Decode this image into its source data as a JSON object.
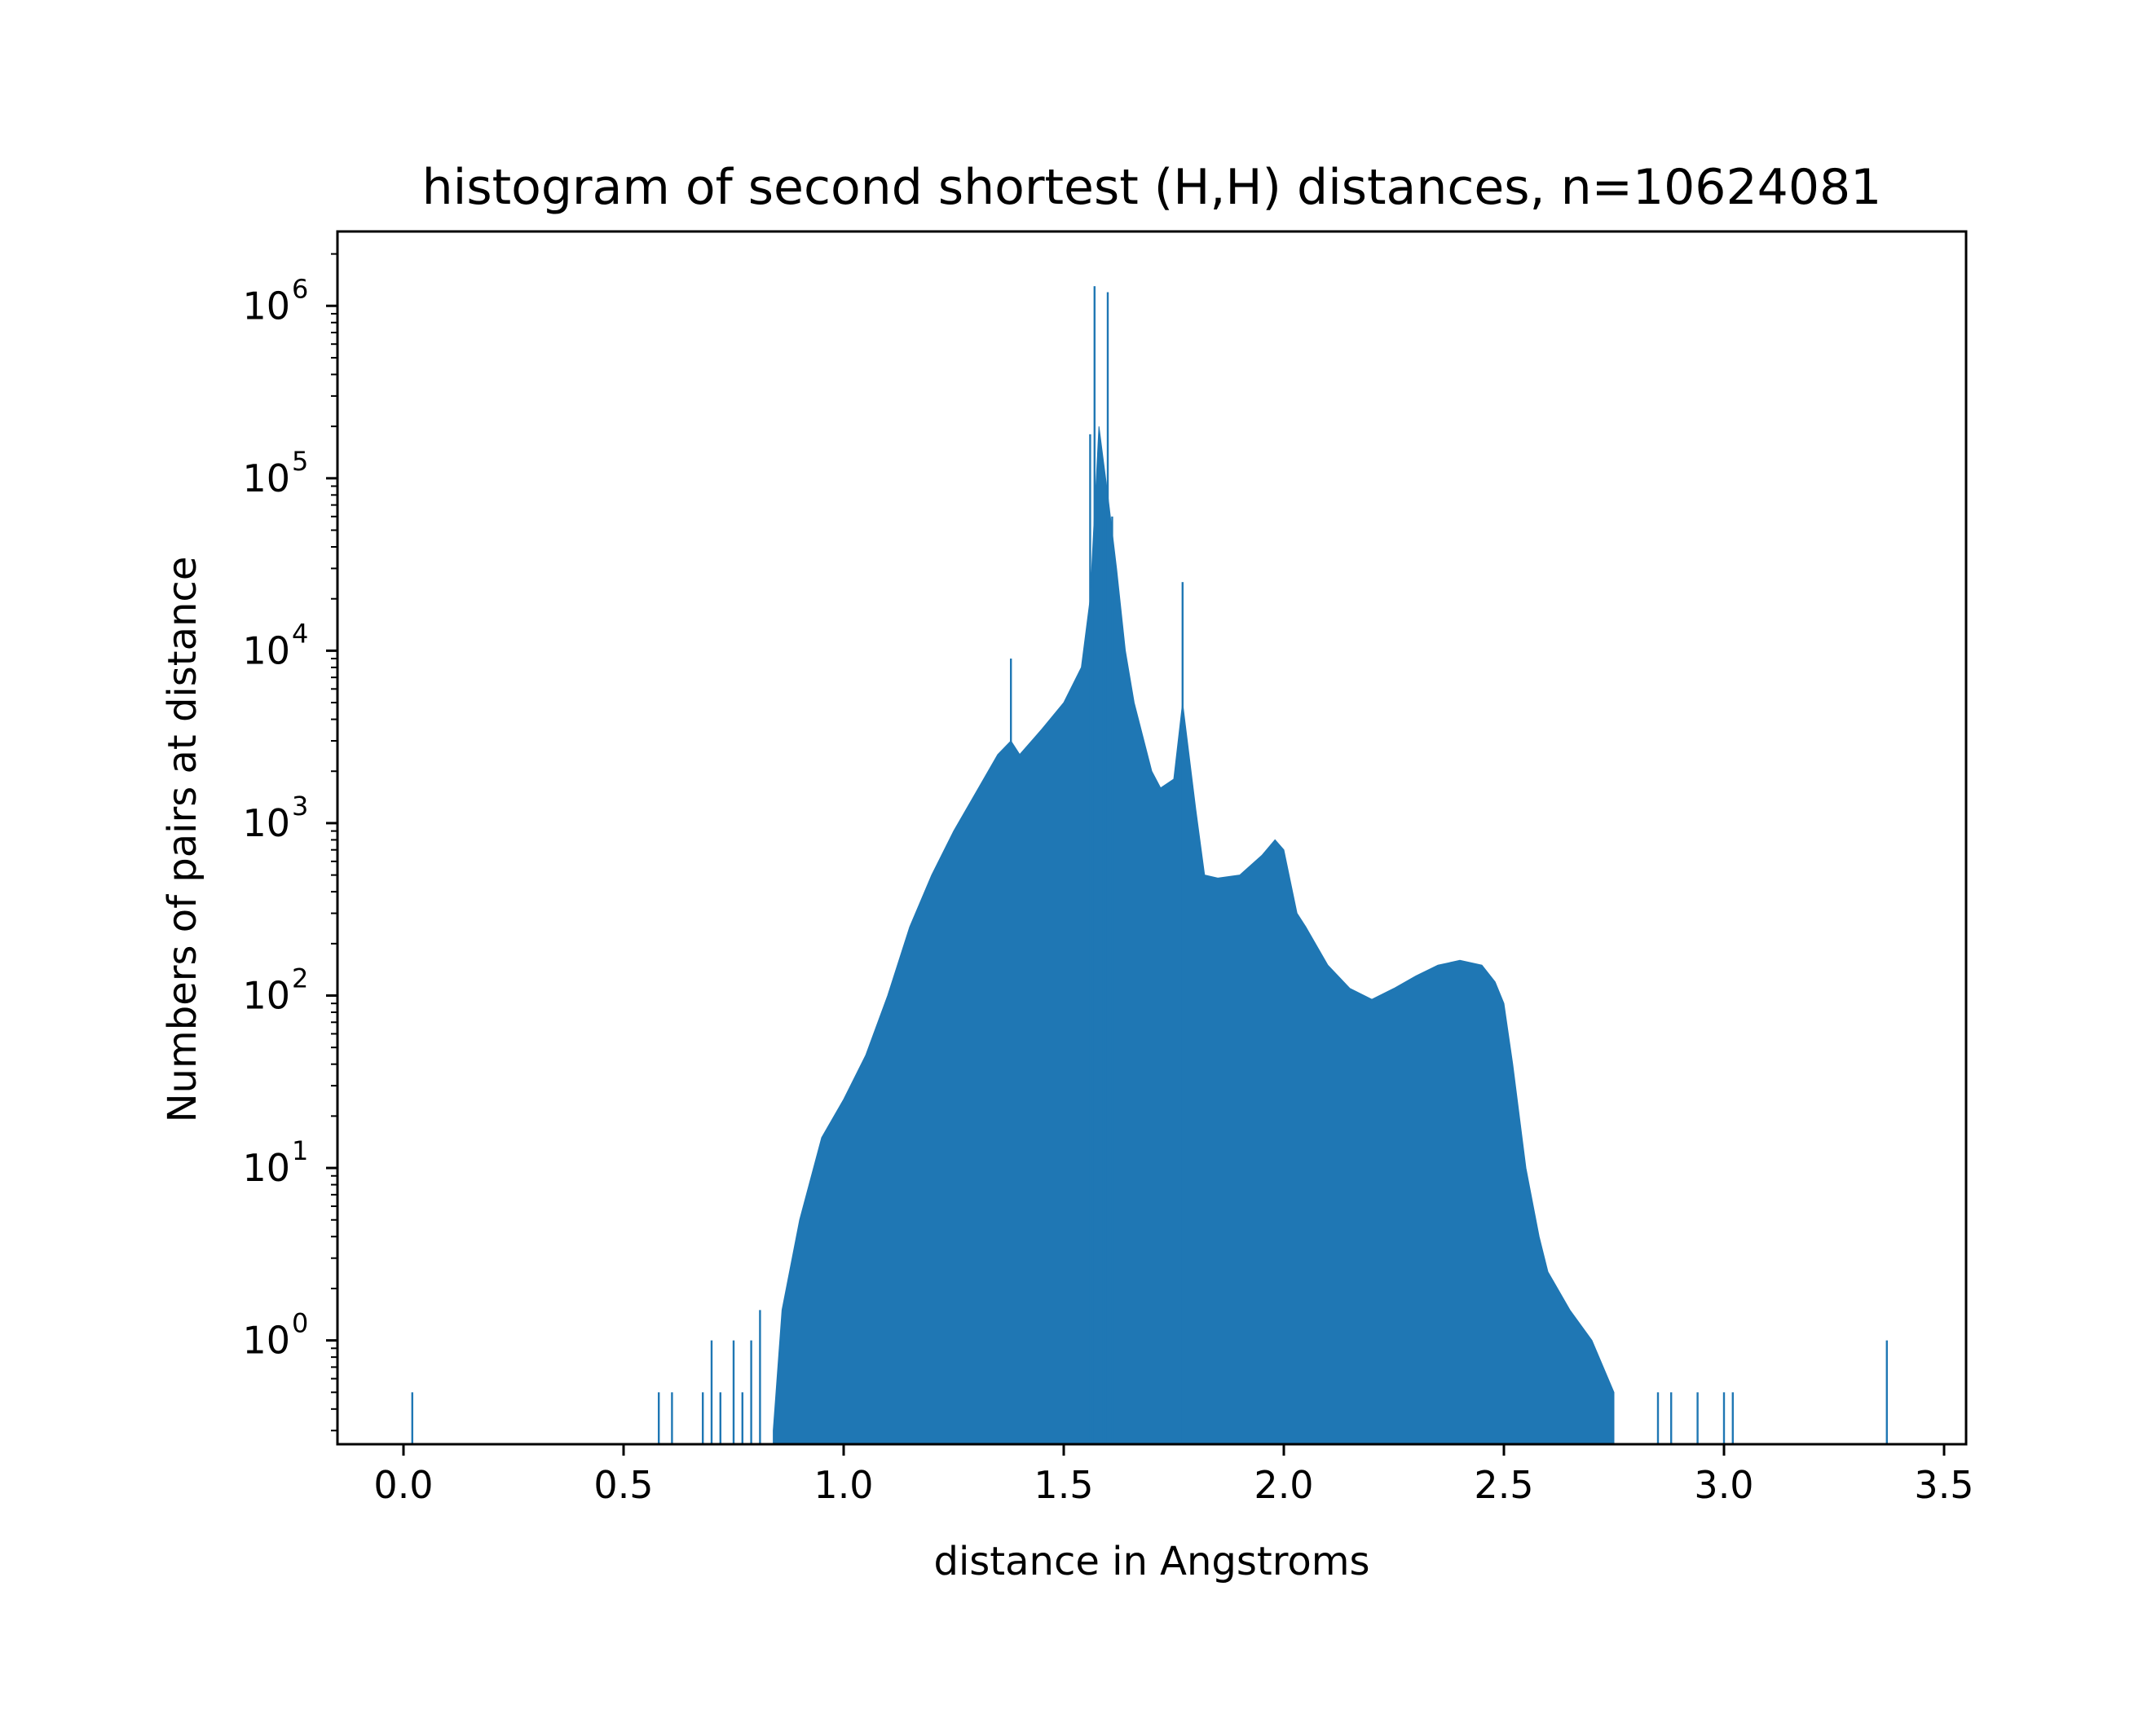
{
  "chart_data": {
    "type": "bar",
    "title": "histogram of second shortest (H,H) distances, n=10624081",
    "xlabel": "distance in Angstroms",
    "ylabel": "Numbers of pairs at distance",
    "xlim": [
      -0.15,
      3.55
    ],
    "ylim": [
      0.25,
      2700000
    ],
    "yscale": "log",
    "grid": false,
    "bar_color": "#1f77b4",
    "xticks": [
      "0.0",
      "0.5",
      "1.0",
      "1.5",
      "2.0",
      "2.5",
      "3.0",
      "3.5"
    ],
    "xtick_values": [
      0.0,
      0.5,
      1.0,
      1.5,
      2.0,
      2.5,
      3.0,
      3.5
    ],
    "yticks": [
      {
        "base": "10",
        "exp": "0",
        "value": 1
      },
      {
        "base": "10",
        "exp": "1",
        "value": 10
      },
      {
        "base": "10",
        "exp": "2",
        "value": 100
      },
      {
        "base": "10",
        "exp": "3",
        "value": 1000
      },
      {
        "base": "10",
        "exp": "4",
        "value": 10000
      },
      {
        "base": "10",
        "exp": "5",
        "value": 100000
      },
      {
        "base": "10",
        "exp": "6",
        "value": 1000000
      }
    ],
    "envelope": {
      "x": [
        0.84,
        0.86,
        0.9,
        0.95,
        1.0,
        1.05,
        1.1,
        1.15,
        1.2,
        1.25,
        1.3,
        1.35,
        1.38,
        1.4,
        1.45,
        1.5,
        1.54,
        1.56,
        1.58,
        1.6,
        1.62,
        1.64,
        1.66,
        1.7,
        1.72,
        1.75,
        1.77,
        1.8,
        1.82,
        1.85,
        1.9,
        1.95,
        1.98,
        2.0,
        2.03,
        2.05,
        2.1,
        2.15,
        2.2,
        2.25,
        2.3,
        2.35,
        2.4,
        2.45,
        2.48,
        2.5,
        2.52,
        2.55,
        2.58,
        2.6,
        2.65,
        2.7,
        2.75
      ],
      "y": [
        0.3,
        1.5,
        5,
        15,
        25,
        45,
        100,
        250,
        500,
        900,
        1500,
        2500,
        3000,
        2500,
        3500,
        5000,
        8000,
        20000,
        200000,
        80000,
        30000,
        10000,
        5000,
        2000,
        1600,
        1800,
        5000,
        1200,
        500,
        480,
        500,
        650,
        800,
        700,
        300,
        250,
        150,
        110,
        95,
        110,
        130,
        150,
        160,
        150,
        120,
        90,
        40,
        10,
        4,
        2.5,
        1.5,
        1,
        0.5
      ]
    },
    "spikes": [
      {
        "x": 0.02,
        "y": 0.5
      },
      {
        "x": 0.58,
        "y": 0.5
      },
      {
        "x": 0.61,
        "y": 0.5
      },
      {
        "x": 0.68,
        "y": 0.5
      },
      {
        "x": 0.7,
        "y": 1
      },
      {
        "x": 0.72,
        "y": 0.5
      },
      {
        "x": 0.75,
        "y": 1
      },
      {
        "x": 0.77,
        "y": 0.5
      },
      {
        "x": 0.79,
        "y": 1
      },
      {
        "x": 0.81,
        "y": 1.5
      },
      {
        "x": 1.38,
        "y": 9000
      },
      {
        "x": 1.56,
        "y": 180000
      },
      {
        "x": 1.57,
        "y": 1300000
      },
      {
        "x": 1.59,
        "y": 80000
      },
      {
        "x": 1.6,
        "y": 1200000
      },
      {
        "x": 1.61,
        "y": 60000
      },
      {
        "x": 1.77,
        "y": 25000
      },
      {
        "x": 2.85,
        "y": 0.5
      },
      {
        "x": 2.88,
        "y": 0.5
      },
      {
        "x": 2.94,
        "y": 0.5
      },
      {
        "x": 3.0,
        "y": 0.5
      },
      {
        "x": 3.02,
        "y": 0.5
      },
      {
        "x": 3.37,
        "y": 1
      }
    ]
  }
}
